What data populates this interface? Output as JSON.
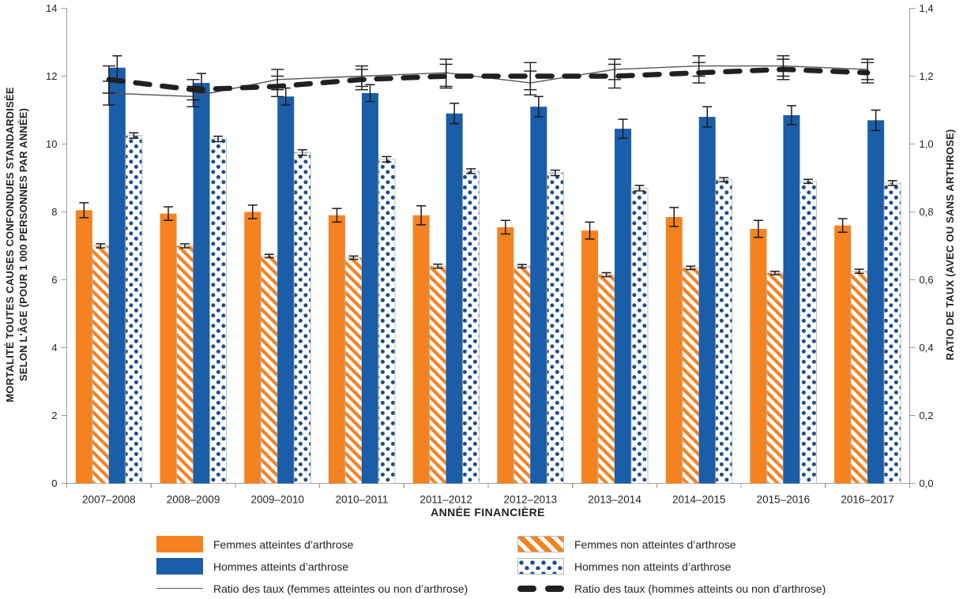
{
  "figure": {
    "x_axis_title": "ANNÉE FINANCIÈRE",
    "y_left_title_line1": "MORTALITÉ TOUTES CAUSES CONFONDUES STANDARDISÉE",
    "y_left_title_line2": "SELON L'ÂGE (POUR 1 000 PERSONNES PAR ANNÉE)",
    "y_right_title": "RATIO DE TAUX (AVEC OU SANS ARTHROSE)"
  },
  "colors": {
    "orange": "#F58220",
    "blue": "#1A5DA8",
    "dot_navy": "#1D4D8C",
    "thin_line": "#55565A",
    "dashed_line": "#231F20",
    "axis": "#9C9C9C",
    "text": "#231F20",
    "error_bar": "#1A1A1A",
    "pattern_border": "#B8B8B8"
  },
  "legend": {
    "left_column": [
      {
        "swatch": "orange-solid",
        "label": "Femmes atteintes d’arthrose"
      },
      {
        "swatch": "blue-solid",
        "label": "Hommes atteints d’arthrose"
      },
      {
        "swatch": "thin-line",
        "label": "Ratio des taux (femmes atteintes ou non d’arthrose)"
      }
    ],
    "right_column": [
      {
        "swatch": "orange-hatched",
        "label": "Femmes non atteintes d’arthrose"
      },
      {
        "swatch": "blue-dotted",
        "label": "Hommes non atteints d’arthrose"
      },
      {
        "swatch": "thick-dashed",
        "label": "Ratio des taux (hommes atteints ou non d’arthrose)"
      }
    ]
  },
  "chart_data": {
    "type": "bar",
    "subtype": "grouped bars with two ratio lines on secondary axis, with error bars",
    "categories": [
      "2007–2008",
      "2008–2009",
      "2009–2010",
      "2010–2011",
      "2011–2012",
      "2012–2013",
      "2013–2014",
      "2014–2015",
      "2015–2016",
      "2016–2017"
    ],
    "bar_series": [
      {
        "key": "femmes-atteintes",
        "name": "Femmes atteintes d’arthrose",
        "style": "orange-solid",
        "axis": "left",
        "values": [
          8.05,
          7.95,
          8.0,
          7.9,
          7.9,
          7.55,
          7.45,
          7.85,
          7.5,
          7.6
        ],
        "errors": [
          0.22,
          0.2,
          0.2,
          0.2,
          0.28,
          0.2,
          0.25,
          0.28,
          0.25,
          0.2
        ]
      },
      {
        "key": "femmes-non-atteintes",
        "name": "Femmes non atteintes d’arthrose",
        "style": "orange-hatched",
        "axis": "left",
        "values": [
          7.0,
          7.0,
          6.7,
          6.65,
          6.4,
          6.4,
          6.15,
          6.35,
          6.2,
          6.25
        ],
        "errors": [
          0.06,
          0.06,
          0.05,
          0.05,
          0.06,
          0.05,
          0.06,
          0.05,
          0.05,
          0.06
        ]
      },
      {
        "key": "hommes-atteints",
        "name": "Hommes atteints d’arthrose",
        "style": "blue-solid",
        "axis": "left",
        "values": [
          12.25,
          11.8,
          11.4,
          11.5,
          10.9,
          11.1,
          10.45,
          10.8,
          10.85,
          10.7
        ],
        "errors": [
          0.35,
          0.28,
          0.25,
          0.25,
          0.3,
          0.3,
          0.28,
          0.3,
          0.28,
          0.3
        ]
      },
      {
        "key": "hommes-non-atteints",
        "name": "Hommes non atteints d’arthrose",
        "style": "blue-dotted",
        "axis": "left",
        "values": [
          10.25,
          10.15,
          9.75,
          9.55,
          9.2,
          9.15,
          8.7,
          8.95,
          8.9,
          8.85
        ],
        "errors": [
          0.08,
          0.08,
          0.08,
          0.08,
          0.07,
          0.08,
          0.08,
          0.06,
          0.06,
          0.07
        ]
      }
    ],
    "line_series": [
      {
        "key": "ratio-femmes",
        "name": "Ratio des taux (femmes atteintes ou non d’arthrose)",
        "style": "thin-solid",
        "axis": "right",
        "values": [
          1.15,
          1.14,
          1.19,
          1.2,
          1.21,
          1.18,
          1.22,
          1.23,
          1.23,
          1.22
        ],
        "errors": [
          0.035,
          0.03,
          0.03,
          0.03,
          0.04,
          0.035,
          0.03,
          0.03,
          0.03,
          0.03
        ]
      },
      {
        "key": "ratio-hommes",
        "name": "Ratio des taux (hommes atteints ou non d’arthrose)",
        "style": "thick-dashed",
        "axis": "right",
        "values": [
          1.19,
          1.16,
          1.17,
          1.19,
          1.2,
          1.2,
          1.2,
          1.21,
          1.22,
          1.21
        ],
        "errors": [
          0.04,
          0.03,
          0.03,
          0.03,
          0.035,
          0.04,
          0.035,
          0.03,
          0.03,
          0.03
        ]
      }
    ],
    "left_axis": {
      "min": 0,
      "max": 14,
      "step": 2,
      "tick_labels": [
        "0",
        "2",
        "4",
        "6",
        "8",
        "10",
        "12",
        "14"
      ]
    },
    "right_axis": {
      "min": 0.0,
      "max": 1.4,
      "step": 0.2,
      "tick_labels": [
        "0,0",
        "0,2",
        "0,4",
        "0,6",
        "0,8",
        "1,0",
        "1,2",
        "1,4"
      ]
    },
    "xlabel": "ANNÉE FINANCIÈRE",
    "ylabel_left": "MORTALITÉ TOUTES CAUSES CONFONDUES STANDARDISÉE SELON L'ÂGE (POUR 1 000 PERSONNES PAR ANNÉE)",
    "ylabel_right": "RATIO DE TAUX (AVEC OU SANS ARTHROSE)",
    "grid": false,
    "legend_position": "bottom, two columns"
  }
}
